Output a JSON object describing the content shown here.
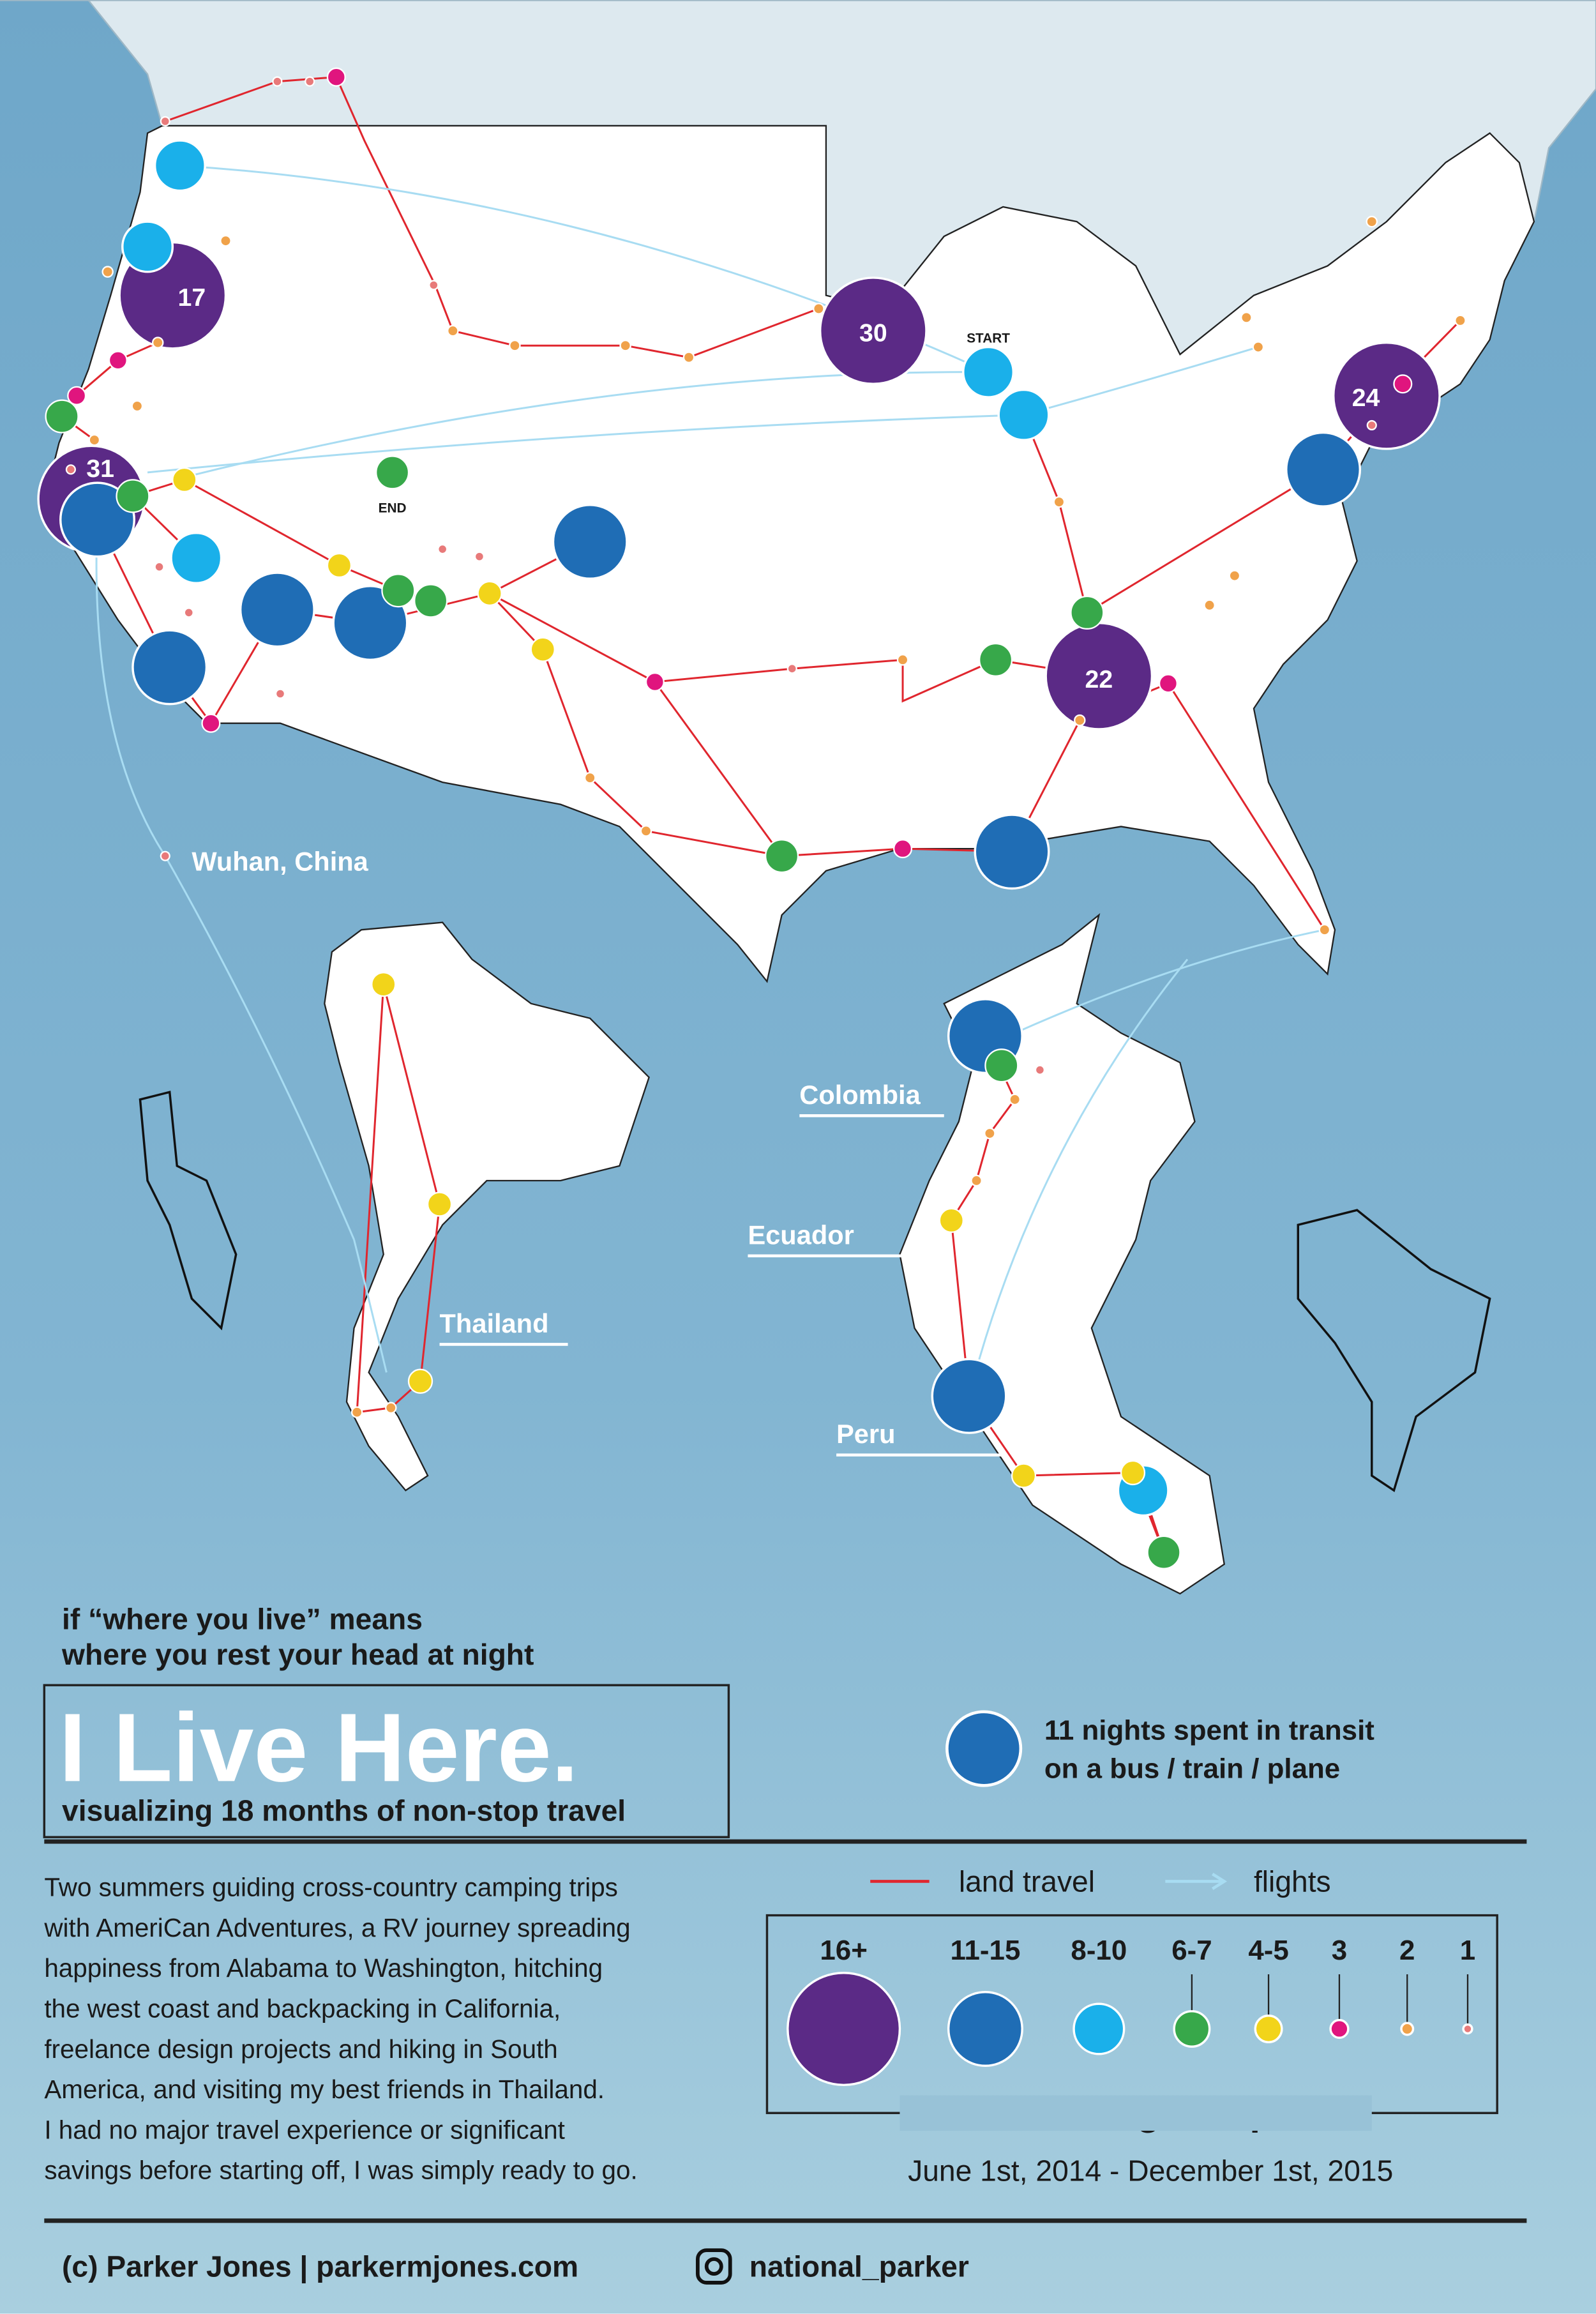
{
  "map_labels": {
    "start": "START",
    "end": "END",
    "wuhan": "Wuhan, China",
    "colombia": "Colombia",
    "ecuador": "Ecuador",
    "peru": "Peru",
    "thailand": "Thailand"
  },
  "stop_counts": [
    17,
    30,
    31,
    24,
    22
  ],
  "tagline": [
    "if “where you live” means",
    "where you rest your head at night"
  ],
  "title": "I Live Here.",
  "subtitle": "visualizing 18 months of non-stop travel",
  "transit_note": [
    "11 nights spent in transit",
    "on a bus / train / plane"
  ],
  "description": [
    "Two summers guiding cross-country camping trips",
    "with AmeriCan Adventures, a RV journey spreading",
    "happiness from Alabama to Washington, hitching",
    "the west coast and backpacking in California,",
    "freelance design projects and hiking in South",
    "America, and visiting my best friends in Thailand.",
    "I had no major travel experience or significant",
    "savings before starting off, I was simply ready to go."
  ],
  "legend": {
    "land": "land travel",
    "flights": "flights",
    "sizes": [
      "16+",
      "11-15",
      "8-10",
      "6-7",
      "4-5",
      "3",
      "2",
      "1"
    ],
    "caption": "# of total nights spent"
  },
  "date_range": "June 1st, 2014 - December 1st, 2015",
  "footer": {
    "credit": "(c) Parker Jones | parkermjones.com",
    "instagram": "national_parker"
  }
}
